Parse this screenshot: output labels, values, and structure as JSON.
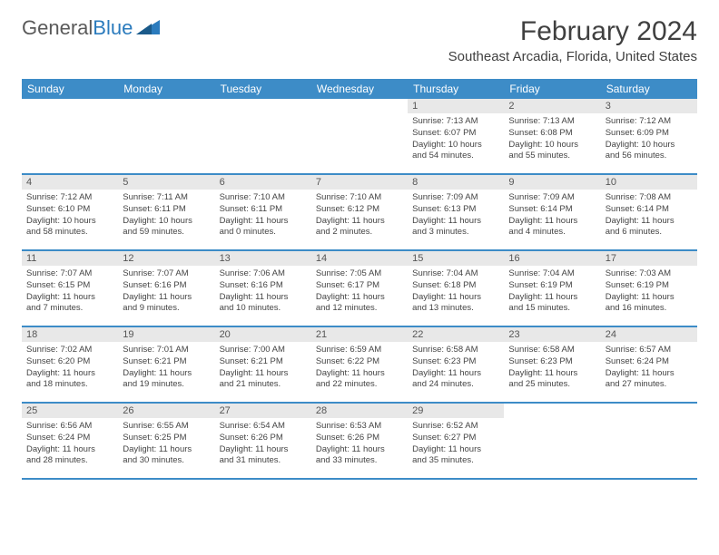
{
  "logo": {
    "text1": "General",
    "text2": "Blue"
  },
  "title": "February 2024",
  "location": "Southeast Arcadia, Florida, United States",
  "colors": {
    "header_bg": "#3d8cc7",
    "header_text": "#ffffff",
    "daynum_bg": "#e8e8e8",
    "rule": "#3d8cc7",
    "body_text": "#444444",
    "logo_gray": "#5a5a5a",
    "logo_blue": "#2b7bbd"
  },
  "weekdays": [
    "Sunday",
    "Monday",
    "Tuesday",
    "Wednesday",
    "Thursday",
    "Friday",
    "Saturday"
  ],
  "weeks": [
    [
      null,
      null,
      null,
      null,
      {
        "n": "1",
        "sr": "7:13 AM",
        "ss": "6:07 PM",
        "dh": "10",
        "dm": "54"
      },
      {
        "n": "2",
        "sr": "7:13 AM",
        "ss": "6:08 PM",
        "dh": "10",
        "dm": "55"
      },
      {
        "n": "3",
        "sr": "7:12 AM",
        "ss": "6:09 PM",
        "dh": "10",
        "dm": "56"
      }
    ],
    [
      {
        "n": "4",
        "sr": "7:12 AM",
        "ss": "6:10 PM",
        "dh": "10",
        "dm": "58"
      },
      {
        "n": "5",
        "sr": "7:11 AM",
        "ss": "6:11 PM",
        "dh": "10",
        "dm": "59"
      },
      {
        "n": "6",
        "sr": "7:10 AM",
        "ss": "6:11 PM",
        "dh": "11",
        "dm": "0"
      },
      {
        "n": "7",
        "sr": "7:10 AM",
        "ss": "6:12 PM",
        "dh": "11",
        "dm": "2"
      },
      {
        "n": "8",
        "sr": "7:09 AM",
        "ss": "6:13 PM",
        "dh": "11",
        "dm": "3"
      },
      {
        "n": "9",
        "sr": "7:09 AM",
        "ss": "6:14 PM",
        "dh": "11",
        "dm": "4"
      },
      {
        "n": "10",
        "sr": "7:08 AM",
        "ss": "6:14 PM",
        "dh": "11",
        "dm": "6"
      }
    ],
    [
      {
        "n": "11",
        "sr": "7:07 AM",
        "ss": "6:15 PM",
        "dh": "11",
        "dm": "7"
      },
      {
        "n": "12",
        "sr": "7:07 AM",
        "ss": "6:16 PM",
        "dh": "11",
        "dm": "9"
      },
      {
        "n": "13",
        "sr": "7:06 AM",
        "ss": "6:16 PM",
        "dh": "11",
        "dm": "10"
      },
      {
        "n": "14",
        "sr": "7:05 AM",
        "ss": "6:17 PM",
        "dh": "11",
        "dm": "12"
      },
      {
        "n": "15",
        "sr": "7:04 AM",
        "ss": "6:18 PM",
        "dh": "11",
        "dm": "13"
      },
      {
        "n": "16",
        "sr": "7:04 AM",
        "ss": "6:19 PM",
        "dh": "11",
        "dm": "15"
      },
      {
        "n": "17",
        "sr": "7:03 AM",
        "ss": "6:19 PM",
        "dh": "11",
        "dm": "16"
      }
    ],
    [
      {
        "n": "18",
        "sr": "7:02 AM",
        "ss": "6:20 PM",
        "dh": "11",
        "dm": "18"
      },
      {
        "n": "19",
        "sr": "7:01 AM",
        "ss": "6:21 PM",
        "dh": "11",
        "dm": "19"
      },
      {
        "n": "20",
        "sr": "7:00 AM",
        "ss": "6:21 PM",
        "dh": "11",
        "dm": "21"
      },
      {
        "n": "21",
        "sr": "6:59 AM",
        "ss": "6:22 PM",
        "dh": "11",
        "dm": "22"
      },
      {
        "n": "22",
        "sr": "6:58 AM",
        "ss": "6:23 PM",
        "dh": "11",
        "dm": "24"
      },
      {
        "n": "23",
        "sr": "6:58 AM",
        "ss": "6:23 PM",
        "dh": "11",
        "dm": "25"
      },
      {
        "n": "24",
        "sr": "6:57 AM",
        "ss": "6:24 PM",
        "dh": "11",
        "dm": "27"
      }
    ],
    [
      {
        "n": "25",
        "sr": "6:56 AM",
        "ss": "6:24 PM",
        "dh": "11",
        "dm": "28"
      },
      {
        "n": "26",
        "sr": "6:55 AM",
        "ss": "6:25 PM",
        "dh": "11",
        "dm": "30"
      },
      {
        "n": "27",
        "sr": "6:54 AM",
        "ss": "6:26 PM",
        "dh": "11",
        "dm": "31"
      },
      {
        "n": "28",
        "sr": "6:53 AM",
        "ss": "6:26 PM",
        "dh": "11",
        "dm": "33"
      },
      {
        "n": "29",
        "sr": "6:52 AM",
        "ss": "6:27 PM",
        "dh": "11",
        "dm": "35"
      },
      null,
      null
    ]
  ],
  "labels": {
    "sunrise": "Sunrise:",
    "sunset": "Sunset:",
    "daylight_prefix": "Daylight:",
    "hours_word": "hours",
    "and_word": "and",
    "minutes_word": "minutes."
  }
}
